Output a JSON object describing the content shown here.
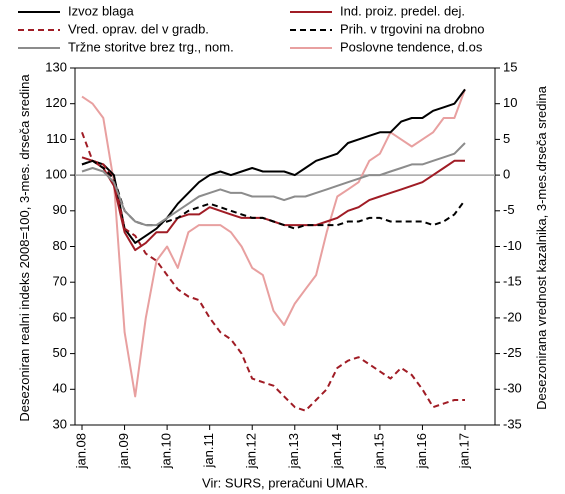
{
  "chart_data": {
    "type": "line",
    "categories": [
      "jan.08",
      null,
      null,
      null,
      "jan.09",
      null,
      null,
      null,
      "jan.10",
      null,
      null,
      null,
      "jan.11",
      null,
      null,
      null,
      "jan.12",
      null,
      null,
      null,
      "jan.13",
      null,
      null,
      null,
      "jan.14",
      null,
      null,
      null,
      "jan.15",
      null,
      null,
      null,
      "jan.16",
      null,
      null,
      null,
      "jan.17"
    ],
    "ylabel": "Desezoniran realni indeks 2008=100, 3-mes. drseča sredina",
    "y2label": "Desezonirana vrednost kazalnika, 3-mes.drseča sredina",
    "xlabel": "Vir: SURS, preračuni UMAR.",
    "ylim": [
      30,
      130
    ],
    "yticks": [
      30,
      40,
      50,
      60,
      70,
      80,
      90,
      100,
      110,
      120,
      130
    ],
    "y2lim": [
      -35,
      15
    ],
    "y2ticks": [
      -35,
      -30,
      -25,
      -20,
      -15,
      -10,
      -5,
      0,
      5,
      10,
      15
    ],
    "legend": "top",
    "series": [
      {
        "name": "Izvoz blaga",
        "color": "#000000",
        "dashed": false,
        "values": [
          103,
          104,
          103,
          100,
          85,
          81,
          83,
          85,
          88,
          92,
          95,
          98,
          100,
          101,
          100,
          101,
          102,
          101,
          101,
          101,
          100,
          102,
          104,
          105,
          106,
          109,
          110,
          111,
          112,
          112,
          115,
          116,
          116,
          118,
          119,
          120,
          124
        ]
      },
      {
        "name": "Ind. proiz. predel. dej.",
        "color": "#a01c25",
        "dashed": false,
        "values": [
          105,
          104,
          102,
          97,
          84,
          79,
          81,
          84,
          84,
          88,
          89,
          89,
          91,
          90,
          89,
          88,
          88,
          88,
          87,
          86,
          86,
          86,
          86,
          87,
          88,
          90,
          91,
          93,
          94,
          95,
          96,
          97,
          98,
          100,
          102,
          104,
          104
        ]
      },
      {
        "name": "Vred. oprav. del v gradb.",
        "color": "#a01c25",
        "dashed": true,
        "values": [
          112,
          104,
          103,
          99,
          85,
          83,
          78,
          76,
          72,
          68,
          66,
          65,
          60,
          56,
          54,
          50,
          43,
          42,
          41,
          38,
          35,
          34,
          37,
          40,
          46,
          48,
          49,
          47,
          45,
          43,
          46,
          44,
          40,
          35,
          36,
          37,
          37
        ]
      },
      {
        "name": "Prih. v trgovini na drobno",
        "color": "#000000",
        "dashed": true,
        "values": [
          103,
          104,
          102,
          99,
          90,
          87,
          86,
          86,
          87,
          88,
          90,
          91,
          92,
          91,
          90,
          89,
          88,
          88,
          87,
          86,
          85,
          86,
          86,
          86,
          86,
          87,
          87,
          88,
          88,
          87,
          87,
          87,
          87,
          86,
          87,
          89,
          93
        ]
      },
      {
        "name": "Tržne storitve brez trg., nom.",
        "color": "#8c8c8c",
        "dashed": false,
        "values": [
          101,
          102,
          101,
          98,
          90,
          87,
          86,
          86,
          88,
          90,
          92,
          94,
          95,
          96,
          95,
          95,
          94,
          94,
          94,
          93,
          94,
          94,
          95,
          96,
          97,
          98,
          99,
          100,
          100,
          101,
          102,
          103,
          103,
          104,
          105,
          106,
          109
        ]
      },
      {
        "name": "Poslovne tendence, d.os",
        "color": "#e8a0a0",
        "dashed": false,
        "axis": "y2",
        "values": [
          11,
          10,
          8,
          -1,
          -22,
          -31,
          -20,
          -12,
          -10,
          -13,
          -8,
          -7,
          -7,
          -7,
          -8,
          -10,
          -13,
          -14,
          -19,
          -21,
          -18,
          -16,
          -14,
          -8,
          -3,
          -2,
          -1,
          2,
          3,
          6,
          5,
          4,
          5,
          6,
          8,
          8,
          12
        ]
      }
    ]
  }
}
